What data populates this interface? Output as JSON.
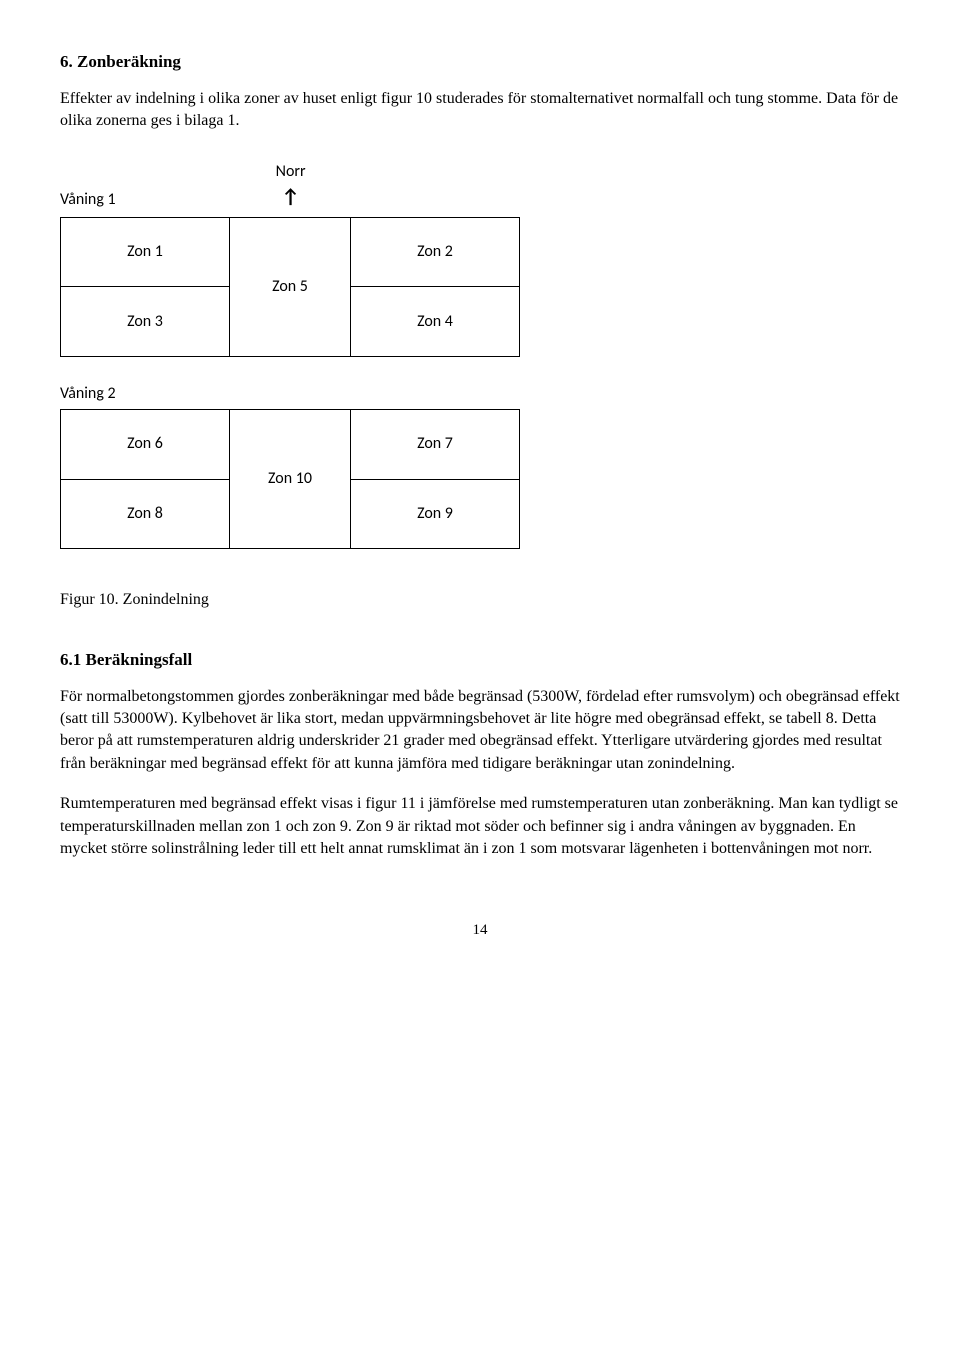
{
  "heading": "6. Zonberäkning",
  "intro": "Effekter av indelning i olika zoner av huset enligt figur 10 studerades för stomalternativet normalfall och tung stomme. Data för de olika zonerna ges i bilaga 1.",
  "diagram": {
    "north_label": "Norr",
    "arrow": "↑",
    "floor1_label": "Våning 1",
    "floor1": {
      "tl": "Zon 1",
      "tr": "Zon 2",
      "mid": "Zon 5",
      "bl": "Zon 3",
      "br": "Zon 4"
    },
    "floor2_label": "Våning 2",
    "floor2": {
      "tl": "Zon 6",
      "tr": "Zon 7",
      "mid": "Zon 10",
      "bl": "Zon 8",
      "br": "Zon 9"
    }
  },
  "fig_caption": "Figur 10. Zonindelning",
  "subheading": "6.1 Beräkningsfall",
  "para1": "För normalbetongstommen gjordes zonberäkningar med både begränsad (5300W, fördelad efter rumsvolym) och obegränsad effekt (satt till 53000W). Kylbehovet är lika stort, medan uppvärmningsbehovet är lite högre med obegränsad effekt, se tabell 8. Detta beror på att rumstemperaturen aldrig underskrider 21 grader med obegränsad effekt. Ytterligare utvärdering gjordes med resultat från beräkningar med begränsad effekt för att kunna jämföra med tidigare beräkningar utan zonindelning.",
  "para2": "Rumtemperaturen med begränsad effekt visas i figur 11 i jämförelse med rumstemperaturen utan zonberäkning. Man kan tydligt se temperaturskillnaden mellan zon 1 och zon 9. Zon 9 är riktad mot söder och befinner sig i andra våningen av byggnaden. En mycket större solinstrålning leder till ett helt annat rumsklimat än i zon 1 som motsvarar lägenheten i bottenvåningen mot norr.",
  "page_number": "14"
}
